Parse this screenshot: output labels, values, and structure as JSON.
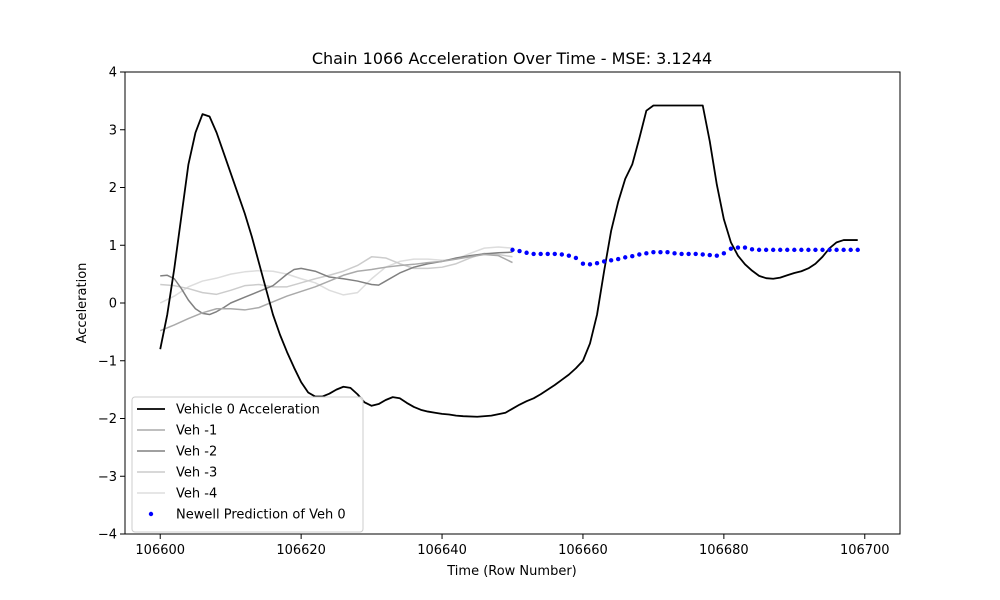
{
  "chart_data": {
    "type": "line",
    "title": "Chain 1066 Acceleration Over Time - MSE: 3.1244",
    "xlabel": "Time (Row Number)",
    "ylabel": "Acceleration",
    "xlim": [
      106595,
      106705
    ],
    "ylim": [
      -4,
      4
    ],
    "xticks": [
      106600,
      106620,
      106640,
      106660,
      106680,
      106700
    ],
    "yticks": [
      -4,
      -3,
      -2,
      -1,
      0,
      1,
      2,
      3,
      4
    ],
    "grid": false,
    "legend_position": "lower-left",
    "series": [
      {
        "name": "Vehicle 0 Acceleration",
        "color": "#000000",
        "kind": "line",
        "x": [
          106600,
          106601,
          106602,
          106603,
          106604,
          106605,
          106606,
          106607,
          106608,
          106609,
          106610,
          106611,
          106612,
          106613,
          106614,
          106615,
          106616,
          106617,
          106618,
          106619,
          106620,
          106621,
          106622,
          106623,
          106624,
          106625,
          106626,
          106627,
          106628,
          106629,
          106630,
          106631,
          106632,
          106633,
          106634,
          106635,
          106636,
          106637,
          106638,
          106639,
          106640,
          106641,
          106642,
          106643,
          106645,
          106647,
          106649,
          106650,
          106651,
          106652,
          106653,
          106654,
          106655,
          106656,
          106657,
          106658,
          106659,
          106660,
          106661,
          106662,
          106663,
          106664,
          106665,
          106666,
          106667,
          106668,
          106669,
          106670,
          106671,
          106672,
          106673,
          106674,
          106675,
          106676,
          106677,
          106678,
          106679,
          106680,
          106681,
          106682,
          106683,
          106684,
          106685,
          106686,
          106687,
          106688,
          106689,
          106690,
          106691,
          106692,
          106693,
          106694,
          106695,
          106696,
          106697,
          106698,
          106699
        ],
        "y": [
          -0.8,
          -0.2,
          0.6,
          1.5,
          2.4,
          2.95,
          3.27,
          3.23,
          2.95,
          2.6,
          2.25,
          1.9,
          1.55,
          1.15,
          0.7,
          0.25,
          -0.2,
          -0.55,
          -0.85,
          -1.12,
          -1.37,
          -1.55,
          -1.62,
          -1.62,
          -1.57,
          -1.5,
          -1.45,
          -1.47,
          -1.58,
          -1.72,
          -1.78,
          -1.75,
          -1.68,
          -1.63,
          -1.65,
          -1.73,
          -1.8,
          -1.85,
          -1.88,
          -1.9,
          -1.92,
          -1.93,
          -1.95,
          -1.96,
          -1.97,
          -1.95,
          -1.9,
          -1.83,
          -1.76,
          -1.7,
          -1.65,
          -1.58,
          -1.5,
          -1.42,
          -1.33,
          -1.24,
          -1.13,
          -1.0,
          -0.7,
          -0.2,
          0.55,
          1.25,
          1.75,
          2.15,
          2.4,
          2.85,
          3.33,
          3.42,
          3.42,
          3.42,
          3.42,
          3.42,
          3.42,
          3.42,
          3.42,
          2.8,
          2.05,
          1.45,
          1.05,
          0.82,
          0.67,
          0.56,
          0.47,
          0.43,
          0.42,
          0.44,
          0.48,
          0.52,
          0.55,
          0.6,
          0.68,
          0.8,
          0.95,
          1.05,
          1.09,
          1.09,
          1.09
        ],
        "y_note": ""
      },
      {
        "name": "Veh -1",
        "color": "#aaaaaa",
        "kind": "line",
        "x": [
          106600,
          106602,
          106604,
          106606,
          106608,
          106610,
          106612,
          106614,
          106616,
          106618,
          106620,
          106622,
          106624,
          106626,
          106628,
          106630,
          106632,
          106634,
          106636,
          106638,
          106640,
          106642,
          106644,
          106646,
          106648,
          106650
        ],
        "y": [
          -0.48,
          -0.38,
          -0.27,
          -0.17,
          -0.1,
          -0.1,
          -0.12,
          -0.08,
          0.02,
          0.12,
          0.2,
          0.28,
          0.38,
          0.48,
          0.55,
          0.58,
          0.62,
          0.65,
          0.67,
          0.7,
          0.72,
          0.76,
          0.8,
          0.84,
          0.82,
          0.7
        ]
      },
      {
        "name": "Veh -2",
        "color": "#808080",
        "kind": "line",
        "x": [
          106600,
          106601,
          106602,
          106603,
          106604,
          106605,
          106606,
          106607,
          106608,
          106609,
          106610,
          106612,
          106614,
          106616,
          106617,
          106618,
          106619,
          106620,
          106622,
          106624,
          106626,
          106628,
          106630,
          106631,
          106632,
          106634,
          106636,
          106638,
          106640,
          106642,
          106644,
          106646,
          106648,
          106650
        ],
        "y": [
          0.47,
          0.48,
          0.42,
          0.25,
          0.05,
          -0.1,
          -0.18,
          -0.2,
          -0.15,
          -0.08,
          0.0,
          0.1,
          0.2,
          0.3,
          0.4,
          0.5,
          0.58,
          0.6,
          0.55,
          0.45,
          0.42,
          0.38,
          0.32,
          0.31,
          0.38,
          0.52,
          0.62,
          0.68,
          0.72,
          0.78,
          0.82,
          0.85,
          0.87,
          0.88
        ]
      },
      {
        "name": "Veh -3",
        "color": "#cccccc",
        "kind": "line",
        "x": [
          106600,
          106602,
          106604,
          106606,
          106608,
          106610,
          106612,
          106614,
          106616,
          106618,
          106620,
          106622,
          106624,
          106626,
          106628,
          106630,
          106632,
          106634,
          106636,
          106638,
          106640,
          106642,
          106644,
          106646,
          106648,
          106650
        ],
        "y": [
          0.32,
          0.3,
          0.25,
          0.18,
          0.15,
          0.22,
          0.3,
          0.32,
          0.28,
          0.28,
          0.35,
          0.42,
          0.48,
          0.55,
          0.65,
          0.8,
          0.78,
          0.68,
          0.6,
          0.6,
          0.62,
          0.68,
          0.78,
          0.86,
          0.84,
          0.8
        ]
      },
      {
        "name": "Veh -4",
        "color": "#dddddd",
        "kind": "line",
        "x": [
          106600,
          106602,
          106604,
          106606,
          106608,
          106610,
          106612,
          106614,
          106616,
          106618,
          106620,
          106622,
          106624,
          106626,
          106628,
          106630,
          106632,
          106634,
          106636,
          106638,
          106640,
          106642,
          106644,
          106646,
          106648,
          106650
        ],
        "y": [
          0.0,
          0.12,
          0.28,
          0.38,
          0.43,
          0.5,
          0.54,
          0.56,
          0.55,
          0.5,
          0.42,
          0.35,
          0.22,
          0.14,
          0.18,
          0.42,
          0.62,
          0.72,
          0.76,
          0.76,
          0.74,
          0.76,
          0.86,
          0.95,
          0.97,
          0.95
        ]
      },
      {
        "name": "Newell Prediction of Veh 0",
        "color": "#0000ff",
        "kind": "scatter",
        "x": [
          106650,
          106651,
          106652,
          106653,
          106654,
          106655,
          106656,
          106657,
          106658,
          106659,
          106660,
          106661,
          106662,
          106663,
          106664,
          106665,
          106666,
          106667,
          106668,
          106669,
          106670,
          106671,
          106672,
          106673,
          106674,
          106675,
          106676,
          106677,
          106678,
          106679,
          106680,
          106681,
          106682,
          106683,
          106684,
          106685,
          106686,
          106687,
          106688,
          106689,
          106690,
          106691,
          106692,
          106693,
          106694,
          106695,
          106696,
          106697,
          106698,
          106699
        ],
        "y": [
          0.92,
          0.9,
          0.87,
          0.85,
          0.85,
          0.85,
          0.85,
          0.84,
          0.82,
          0.78,
          0.68,
          0.67,
          0.69,
          0.72,
          0.74,
          0.76,
          0.79,
          0.81,
          0.84,
          0.86,
          0.88,
          0.88,
          0.88,
          0.86,
          0.85,
          0.85,
          0.85,
          0.84,
          0.83,
          0.82,
          0.86,
          0.94,
          0.96,
          0.96,
          0.93,
          0.92,
          0.92,
          0.92,
          0.92,
          0.92,
          0.92,
          0.92,
          0.92,
          0.92,
          0.92,
          0.92,
          0.92,
          0.92,
          0.92,
          0.92
        ]
      }
    ]
  }
}
